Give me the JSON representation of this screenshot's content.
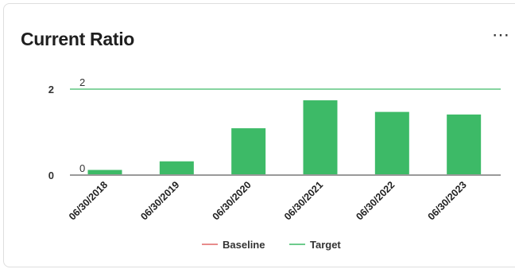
{
  "widget": {
    "title": "Current Ratio",
    "menu_icon": "more-horizontal-icon",
    "menu_glyph": "⋯"
  },
  "chart_data": {
    "type": "bar",
    "categories": [
      "06/30/2018",
      "06/30/2019",
      "06/30/2020",
      "06/30/2021",
      "06/30/2022",
      "06/30/2023"
    ],
    "values": [
      0.12,
      0.32,
      1.09,
      1.74,
      1.47,
      1.41
    ],
    "ylim": [
      0,
      2
    ],
    "yticks": [
      "0",
      "2"
    ],
    "grid": false,
    "bar_color": "#3dba67",
    "reference_lines": [
      {
        "name": "Baseline",
        "value": 0,
        "label": "0",
        "color": "#e06666"
      },
      {
        "name": "Target",
        "value": 2,
        "label": "2",
        "color": "#3dba67"
      }
    ],
    "legend": {
      "placement": "bottom",
      "items": [
        {
          "name": "Baseline",
          "color": "#e06666"
        },
        {
          "name": "Target",
          "color": "#3dba67"
        }
      ]
    }
  }
}
